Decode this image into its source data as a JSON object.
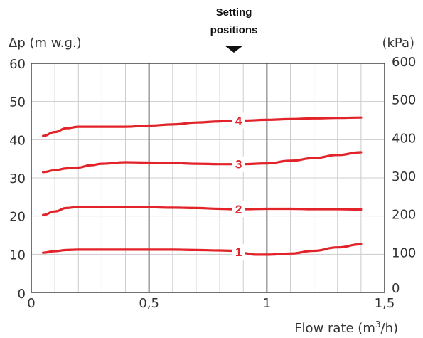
{
  "chart_data": {
    "type": "line",
    "title": "",
    "annotation": {
      "line1": "Setting",
      "line2": "positions"
    },
    "xlabel": "Flow rate (m",
    "xlabel_sup": "3",
    "xlabel_tail": "/h)",
    "ylabel_left": "Δp (m w.g.)",
    "ylabel_right": "(kPa)",
    "xlim": [
      0,
      1.5
    ],
    "ylim": [
      0,
      60
    ],
    "ylim_right": [
      0,
      600
    ],
    "x_ticks": [
      {
        "value": 0,
        "label": "0"
      },
      {
        "value": 0.5,
        "label": "0,5"
      },
      {
        "value": 1,
        "label": "1"
      },
      {
        "value": 1.5,
        "label": "1,5"
      }
    ],
    "y_ticks_left": [
      {
        "value": 0,
        "label": "0"
      },
      {
        "value": 10,
        "label": "10"
      },
      {
        "value": 20,
        "label": "20"
      },
      {
        "value": 30,
        "label": "30"
      },
      {
        "value": 40,
        "label": "40"
      },
      {
        "value": 50,
        "label": "50"
      },
      {
        "value": 60,
        "label": "60"
      }
    ],
    "y_ticks_right": [
      {
        "value": 0,
        "label": "0"
      },
      {
        "value": 100,
        "label": "100"
      },
      {
        "value": 200,
        "label": "200"
      },
      {
        "value": 300,
        "label": "300"
      },
      {
        "value": 400,
        "label": "400"
      },
      {
        "value": 500,
        "label": "500"
      },
      {
        "value": 600,
        "label": "600"
      }
    ],
    "minor_grid_x_step": 0.1,
    "minor_grid_y_step": 10,
    "major_grid_x": [
      0.5,
      1
    ],
    "grid": true,
    "series": [
      {
        "name": "1",
        "label_x": 0.88,
        "x": [
          0.05,
          0.1,
          0.15,
          0.2,
          0.3,
          0.4,
          0.5,
          0.6,
          0.7,
          0.8,
          0.86,
          0.9,
          0.95,
          1.0,
          1.1,
          1.2,
          1.3,
          1.4
        ],
        "y": [
          10.4,
          10.8,
          11.1,
          11.2,
          11.2,
          11.2,
          11.2,
          11.2,
          11.1,
          11.0,
          10.9,
          10.3,
          9.9,
          9.9,
          10.2,
          10.9,
          11.8,
          12.6
        ]
      },
      {
        "name": "2",
        "label_x": 0.88,
        "x": [
          0.05,
          0.1,
          0.15,
          0.2,
          0.3,
          0.4,
          0.5,
          0.6,
          0.7,
          0.8,
          0.86,
          0.9,
          1.0,
          1.1,
          1.2,
          1.3,
          1.4
        ],
        "y": [
          20.3,
          21.2,
          22.1,
          22.4,
          22.4,
          22.4,
          22.3,
          22.2,
          22.1,
          21.9,
          21.8,
          21.8,
          21.9,
          21.9,
          21.8,
          21.8,
          21.7
        ]
      },
      {
        "name": "3",
        "label_x": 0.88,
        "x": [
          0.05,
          0.1,
          0.15,
          0.2,
          0.25,
          0.3,
          0.4,
          0.5,
          0.6,
          0.7,
          0.8,
          0.86,
          0.9,
          1.0,
          1.1,
          1.2,
          1.3,
          1.4
        ],
        "y": [
          31.5,
          32.0,
          32.5,
          32.7,
          33.3,
          33.7,
          34.1,
          34.0,
          33.9,
          33.7,
          33.6,
          33.6,
          33.6,
          33.8,
          34.5,
          35.2,
          36.0,
          36.7
        ]
      },
      {
        "name": "4",
        "label_x": 0.88,
        "x": [
          0.05,
          0.1,
          0.15,
          0.2,
          0.3,
          0.4,
          0.5,
          0.6,
          0.7,
          0.8,
          0.86,
          0.9,
          1.0,
          1.1,
          1.2,
          1.3,
          1.4
        ],
        "y": [
          41.0,
          42.0,
          43.0,
          43.4,
          43.4,
          43.4,
          43.7,
          44.0,
          44.5,
          44.8,
          45.0,
          45.0,
          45.2,
          45.4,
          45.6,
          45.7,
          45.8
        ]
      }
    ],
    "colors": {
      "curve": "#e2232a",
      "major_grid": "#888888",
      "minor_grid": "#cccccc",
      "frame": "#444444",
      "arrow": "#111111"
    }
  }
}
